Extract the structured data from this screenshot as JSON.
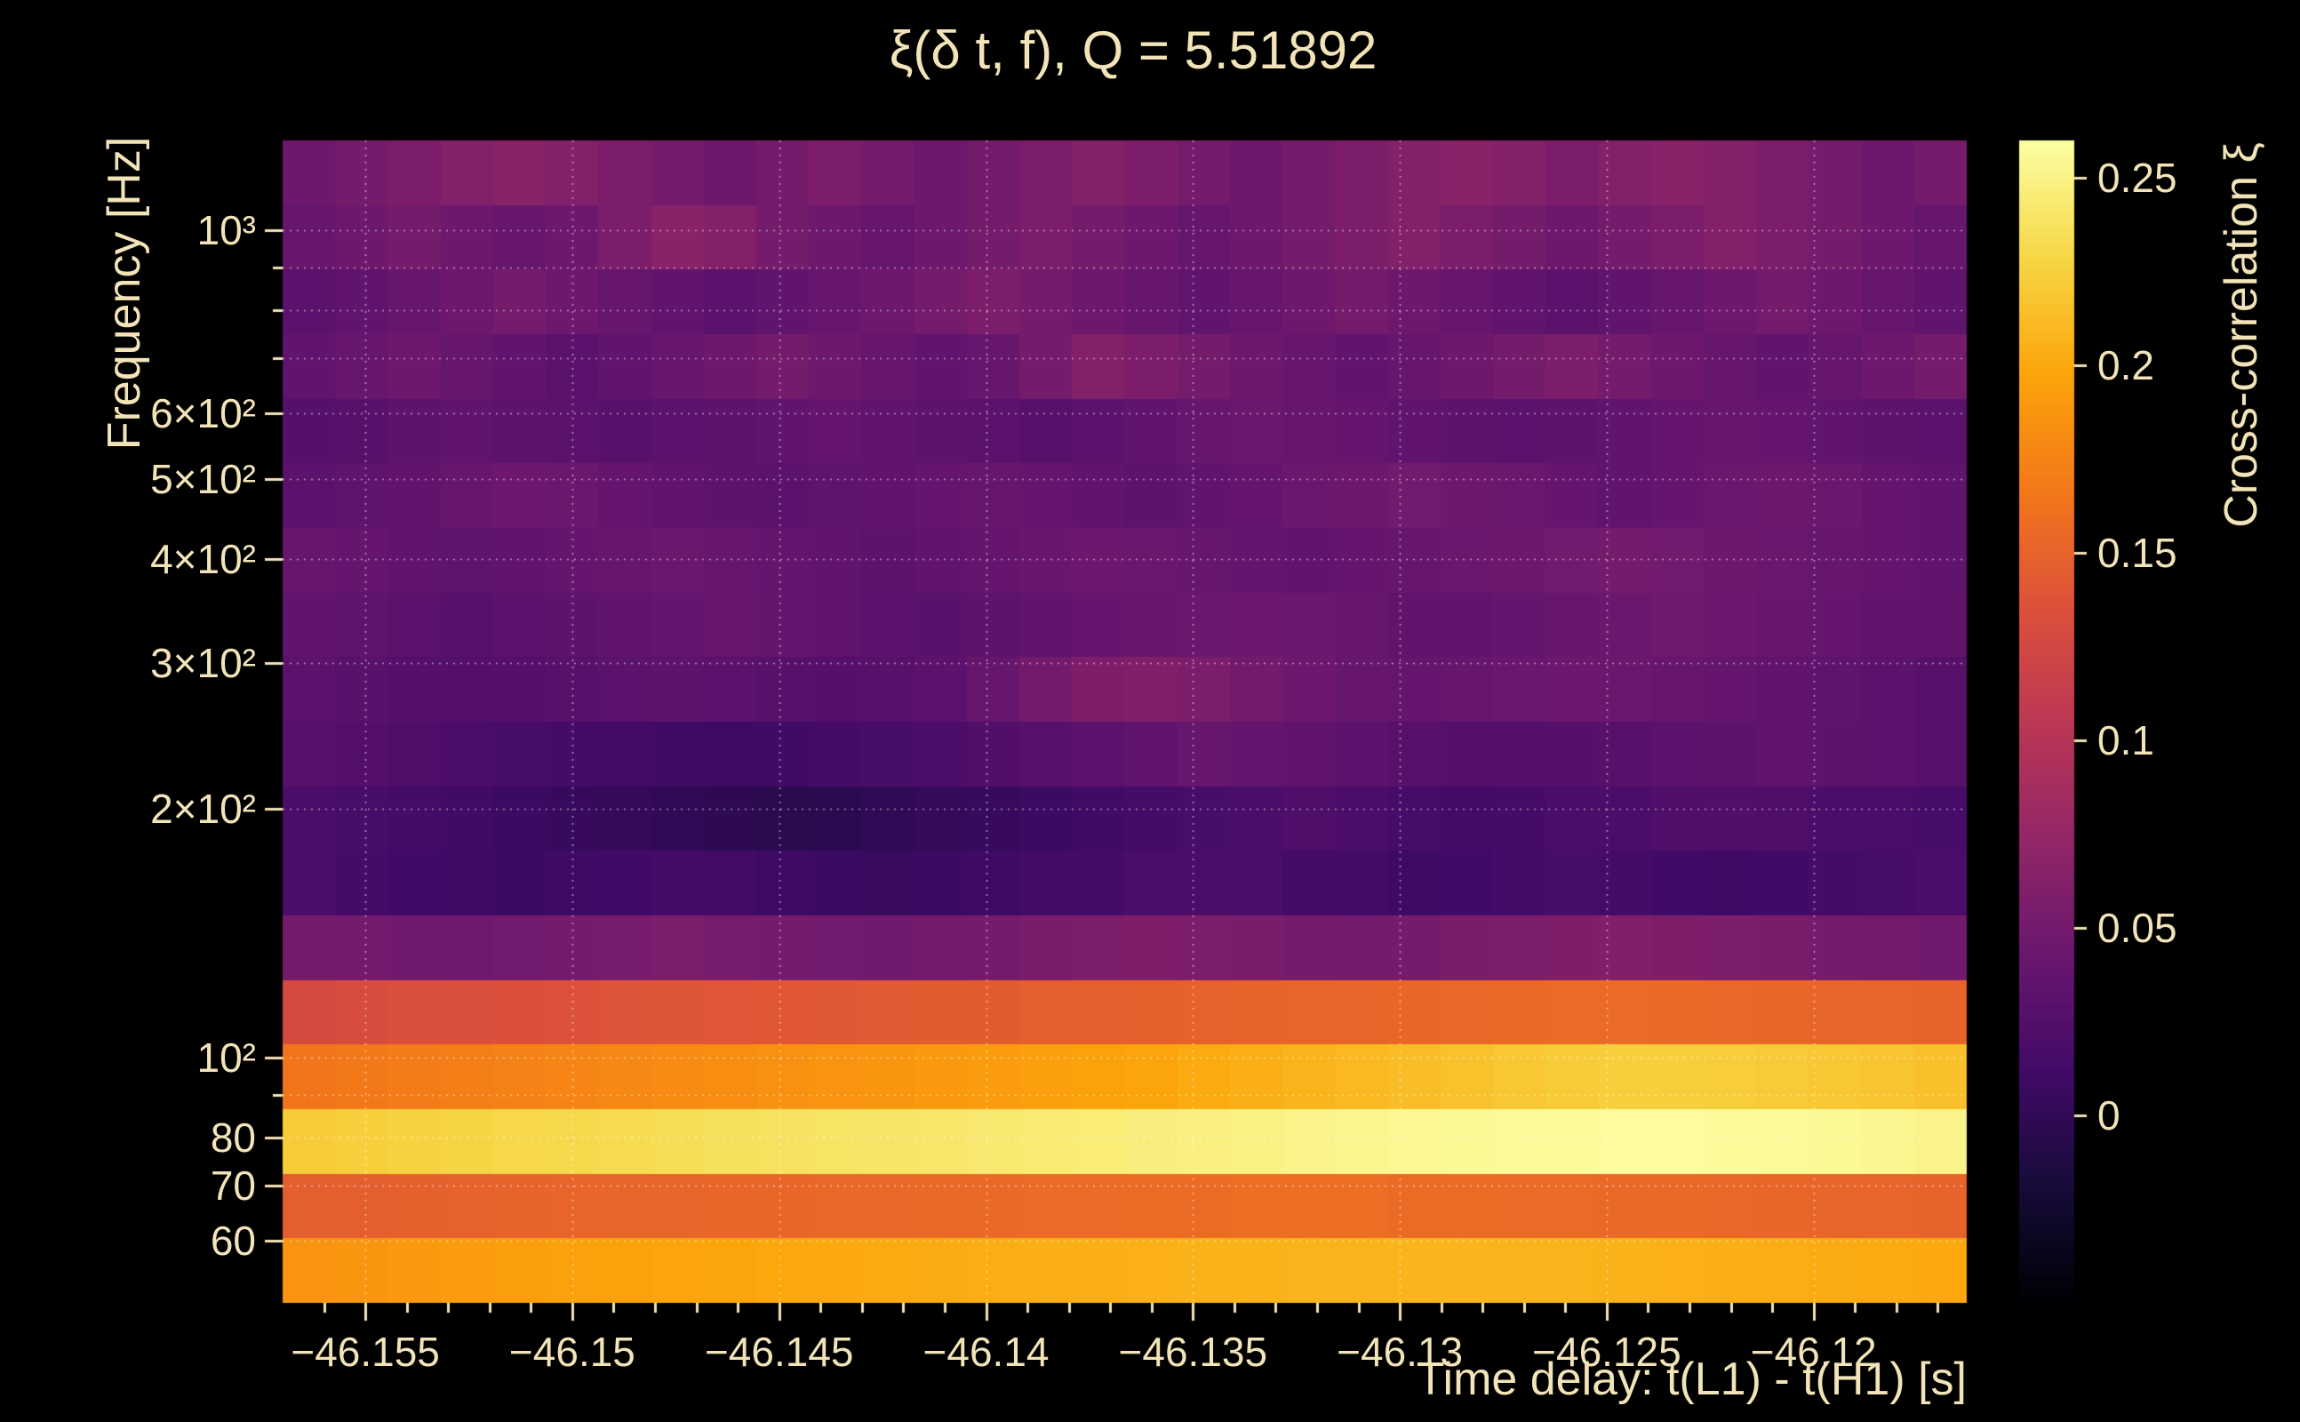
{
  "figure": {
    "background": "#000000",
    "text_color": "#f2e4b8",
    "grid_color": "rgba(255,255,255,0.55)",
    "tick_color": "#f2e4b8"
  },
  "chart_data": {
    "type": "heatmap",
    "title": "ξ(δ t, f), Q = 5.51892",
    "q_value": 5.51892,
    "xlabel": "Time delay: t(L1) - t(H1) [s]",
    "ylabel": "Frequency [Hz]",
    "zlabel": "Cross-correlation ξ",
    "x_range": [
      -46.157,
      -46.1163
    ],
    "y_range_hz": [
      50.5,
      1283
    ],
    "y_scale": "log",
    "z_range": [
      -0.05,
      0.26
    ],
    "n_cols": 32,
    "n_rows": 18,
    "x_ticks": {
      "values": [
        -46.155,
        -46.15,
        -46.145,
        -46.14,
        -46.135,
        -46.13,
        -46.125,
        -46.12
      ],
      "labels": [
        "−46.155",
        "−46.15",
        "−46.145",
        "−46.14",
        "−46.135",
        "−46.13",
        "−46.125",
        "−46.12"
      ]
    },
    "x_minor_step": 0.001,
    "y_ticks": {
      "values": [
        1000,
        600,
        500,
        400,
        300,
        200,
        100,
        80,
        70,
        60
      ],
      "labels": [
        "10³",
        "6×10²",
        "5×10²",
        "4×10²",
        "3×10²",
        "2×10²",
        "10²",
        "80",
        "70",
        "60"
      ]
    },
    "y_minor_ticks": [
      90,
      700,
      800,
      900
    ],
    "colorbar_ticks": {
      "values": [
        0,
        0.05,
        0.1,
        0.15,
        0.2,
        0.25
      ],
      "labels": [
        "0",
        "0.05",
        "0.1",
        "0.15",
        "0.2",
        "0.25"
      ]
    },
    "grid_x": [
      -46.155,
      -46.15,
      -46.145,
      -46.14,
      -46.135,
      -46.13,
      -46.125,
      -46.12
    ],
    "grid_y": [
      60,
      70,
      80,
      90,
      100,
      200,
      300,
      400,
      500,
      600,
      700,
      800,
      900,
      1000
    ],
    "colormap": "inferno",
    "colormap_stops": [
      [
        0.0,
        "#000004"
      ],
      [
        0.1,
        "#160b39"
      ],
      [
        0.2,
        "#420a68"
      ],
      [
        0.3,
        "#6a176e"
      ],
      [
        0.4,
        "#932667"
      ],
      [
        0.5,
        "#bc3754"
      ],
      [
        0.6,
        "#dd513a"
      ],
      [
        0.7,
        "#f37819"
      ],
      [
        0.8,
        "#fca50a"
      ],
      [
        0.9,
        "#f6d746"
      ],
      [
        1.0,
        "#fcffa4"
      ]
    ],
    "values_row_order": "lowest_frequency_first",
    "values": [
      [
        0.186,
        0.188,
        0.19,
        0.192,
        0.193,
        0.195,
        0.196,
        0.197,
        0.198,
        0.199,
        0.2,
        0.201,
        0.202,
        0.203,
        0.204,
        0.204,
        0.205,
        0.206,
        0.206,
        0.207,
        0.207,
        0.208,
        0.208,
        0.207,
        0.207,
        0.206,
        0.205,
        0.204,
        0.203,
        0.202,
        0.201,
        0.2
      ],
      [
        0.146,
        0.147,
        0.148,
        0.149,
        0.15,
        0.151,
        0.152,
        0.152,
        0.153,
        0.153,
        0.154,
        0.154,
        0.155,
        0.155,
        0.156,
        0.156,
        0.157,
        0.157,
        0.158,
        0.158,
        0.158,
        0.157,
        0.157,
        0.156,
        0.156,
        0.155,
        0.155,
        0.154,
        0.153,
        0.152,
        0.151,
        0.15
      ],
      [
        0.222,
        0.224,
        0.226,
        0.228,
        0.23,
        0.231,
        0.233,
        0.234,
        0.236,
        0.237,
        0.239,
        0.24,
        0.241,
        0.243,
        0.244,
        0.245,
        0.247,
        0.248,
        0.249,
        0.251,
        0.252,
        0.254,
        0.255,
        0.256,
        0.257,
        0.258,
        0.258,
        0.257,
        0.256,
        0.255,
        0.253,
        0.251
      ],
      [
        0.165,
        0.167,
        0.17,
        0.172,
        0.174,
        0.176,
        0.178,
        0.18,
        0.182,
        0.184,
        0.186,
        0.188,
        0.19,
        0.192,
        0.194,
        0.196,
        0.198,
        0.201,
        0.204,
        0.207,
        0.21,
        0.213,
        0.216,
        0.219,
        0.222,
        0.224,
        0.224,
        0.223,
        0.221,
        0.219,
        0.217,
        0.215
      ],
      [
        0.128,
        0.13,
        0.132,
        0.133,
        0.135,
        0.136,
        0.138,
        0.139,
        0.14,
        0.141,
        0.142,
        0.143,
        0.144,
        0.145,
        0.146,
        0.147,
        0.148,
        0.149,
        0.15,
        0.151,
        0.152,
        0.153,
        0.154,
        0.155,
        0.156,
        0.156,
        0.155,
        0.154,
        0.153,
        0.152,
        0.151,
        0.15
      ],
      [
        0.052,
        0.05,
        0.048,
        0.047,
        0.049,
        0.051,
        0.053,
        0.055,
        0.053,
        0.051,
        0.049,
        0.048,
        0.05,
        0.052,
        0.054,
        0.056,
        0.058,
        0.056,
        0.054,
        0.052,
        0.05,
        0.052,
        0.054,
        0.056,
        0.058,
        0.06,
        0.058,
        0.056,
        0.054,
        0.052,
        0.05,
        0.048
      ],
      [
        0.018,
        0.015,
        0.012,
        0.01,
        0.008,
        0.01,
        0.012,
        0.015,
        0.013,
        0.01,
        0.008,
        0.006,
        0.008,
        0.01,
        0.013,
        0.015,
        0.018,
        0.02,
        0.018,
        0.015,
        0.013,
        0.01,
        0.012,
        0.015,
        0.017,
        0.015,
        0.012,
        0.01,
        0.012,
        0.014,
        0.016,
        0.018
      ],
      [
        0.02,
        0.017,
        0.014,
        0.011,
        0.008,
        0.005,
        0.002,
        0.0,
        -0.003,
        -0.005,
        -0.004,
        -0.001,
        0.002,
        0.005,
        0.008,
        0.011,
        0.014,
        0.017,
        0.019,
        0.021,
        0.019,
        0.016,
        0.013,
        0.015,
        0.018,
        0.02,
        0.022,
        0.024,
        0.022,
        0.02,
        0.018,
        0.016
      ],
      [
        0.028,
        0.025,
        0.022,
        0.019,
        0.017,
        0.015,
        0.013,
        0.011,
        0.009,
        0.011,
        0.014,
        0.017,
        0.02,
        0.024,
        0.028,
        0.032,
        0.036,
        0.04,
        0.038,
        0.035,
        0.032,
        0.029,
        0.027,
        0.025,
        0.027,
        0.029,
        0.031,
        0.033,
        0.035,
        0.033,
        0.031,
        0.029
      ],
      [
        0.032,
        0.03,
        0.027,
        0.025,
        0.027,
        0.029,
        0.031,
        0.033,
        0.031,
        0.029,
        0.027,
        0.029,
        0.032,
        0.04,
        0.05,
        0.058,
        0.06,
        0.056,
        0.05,
        0.045,
        0.041,
        0.039,
        0.041,
        0.043,
        0.045,
        0.043,
        0.041,
        0.039,
        0.037,
        0.034,
        0.031,
        0.029
      ],
      [
        0.036,
        0.034,
        0.031,
        0.029,
        0.031,
        0.033,
        0.036,
        0.038,
        0.04,
        0.038,
        0.035,
        0.032,
        0.03,
        0.033,
        0.036,
        0.039,
        0.041,
        0.043,
        0.045,
        0.043,
        0.04,
        0.037,
        0.035,
        0.038,
        0.041,
        0.044,
        0.047,
        0.045,
        0.042,
        0.039,
        0.037,
        0.035
      ],
      [
        0.041,
        0.039,
        0.036,
        0.034,
        0.036,
        0.039,
        0.041,
        0.043,
        0.041,
        0.038,
        0.035,
        0.033,
        0.036,
        0.039,
        0.042,
        0.045,
        0.043,
        0.04,
        0.038,
        0.036,
        0.039,
        0.041,
        0.044,
        0.046,
        0.049,
        0.051,
        0.049,
        0.046,
        0.043,
        0.041,
        0.039,
        0.036
      ],
      [
        0.031,
        0.034,
        0.037,
        0.041,
        0.045,
        0.043,
        0.039,
        0.036,
        0.033,
        0.031,
        0.034,
        0.037,
        0.039,
        0.041,
        0.039,
        0.036,
        0.033,
        0.036,
        0.039,
        0.043,
        0.046,
        0.049,
        0.046,
        0.043,
        0.039,
        0.036,
        0.039,
        0.043,
        0.046,
        0.043,
        0.039,
        0.036
      ],
      [
        0.026,
        0.029,
        0.033,
        0.036,
        0.033,
        0.031,
        0.029,
        0.031,
        0.033,
        0.036,
        0.039,
        0.036,
        0.033,
        0.031,
        0.029,
        0.031,
        0.036,
        0.041,
        0.043,
        0.041,
        0.039,
        0.036,
        0.033,
        0.031,
        0.033,
        0.036,
        0.039,
        0.041,
        0.039,
        0.036,
        0.033,
        0.031
      ],
      [
        0.036,
        0.041,
        0.046,
        0.041,
        0.036,
        0.031,
        0.036,
        0.041,
        0.046,
        0.051,
        0.046,
        0.041,
        0.036,
        0.041,
        0.051,
        0.061,
        0.056,
        0.051,
        0.046,
        0.041,
        0.036,
        0.041,
        0.046,
        0.051,
        0.056,
        0.051,
        0.046,
        0.041,
        0.036,
        0.041,
        0.046,
        0.051
      ],
      [
        0.031,
        0.036,
        0.041,
        0.046,
        0.051,
        0.046,
        0.041,
        0.036,
        0.031,
        0.036,
        0.041,
        0.046,
        0.051,
        0.056,
        0.051,
        0.046,
        0.041,
        0.036,
        0.041,
        0.046,
        0.051,
        0.046,
        0.041,
        0.036,
        0.031,
        0.036,
        0.041,
        0.046,
        0.051,
        0.046,
        0.041,
        0.036
      ],
      [
        0.041,
        0.046,
        0.051,
        0.046,
        0.041,
        0.046,
        0.056,
        0.066,
        0.061,
        0.051,
        0.046,
        0.041,
        0.046,
        0.051,
        0.056,
        0.051,
        0.046,
        0.041,
        0.046,
        0.051,
        0.056,
        0.061,
        0.056,
        0.051,
        0.046,
        0.051,
        0.056,
        0.061,
        0.056,
        0.051,
        0.046,
        0.041
      ],
      [
        0.046,
        0.051,
        0.056,
        0.061,
        0.066,
        0.061,
        0.056,
        0.051,
        0.046,
        0.051,
        0.056,
        0.051,
        0.046,
        0.051,
        0.056,
        0.061,
        0.056,
        0.051,
        0.046,
        0.051,
        0.056,
        0.061,
        0.066,
        0.061,
        0.056,
        0.061,
        0.066,
        0.061,
        0.056,
        0.051,
        0.046,
        0.051
      ]
    ]
  }
}
